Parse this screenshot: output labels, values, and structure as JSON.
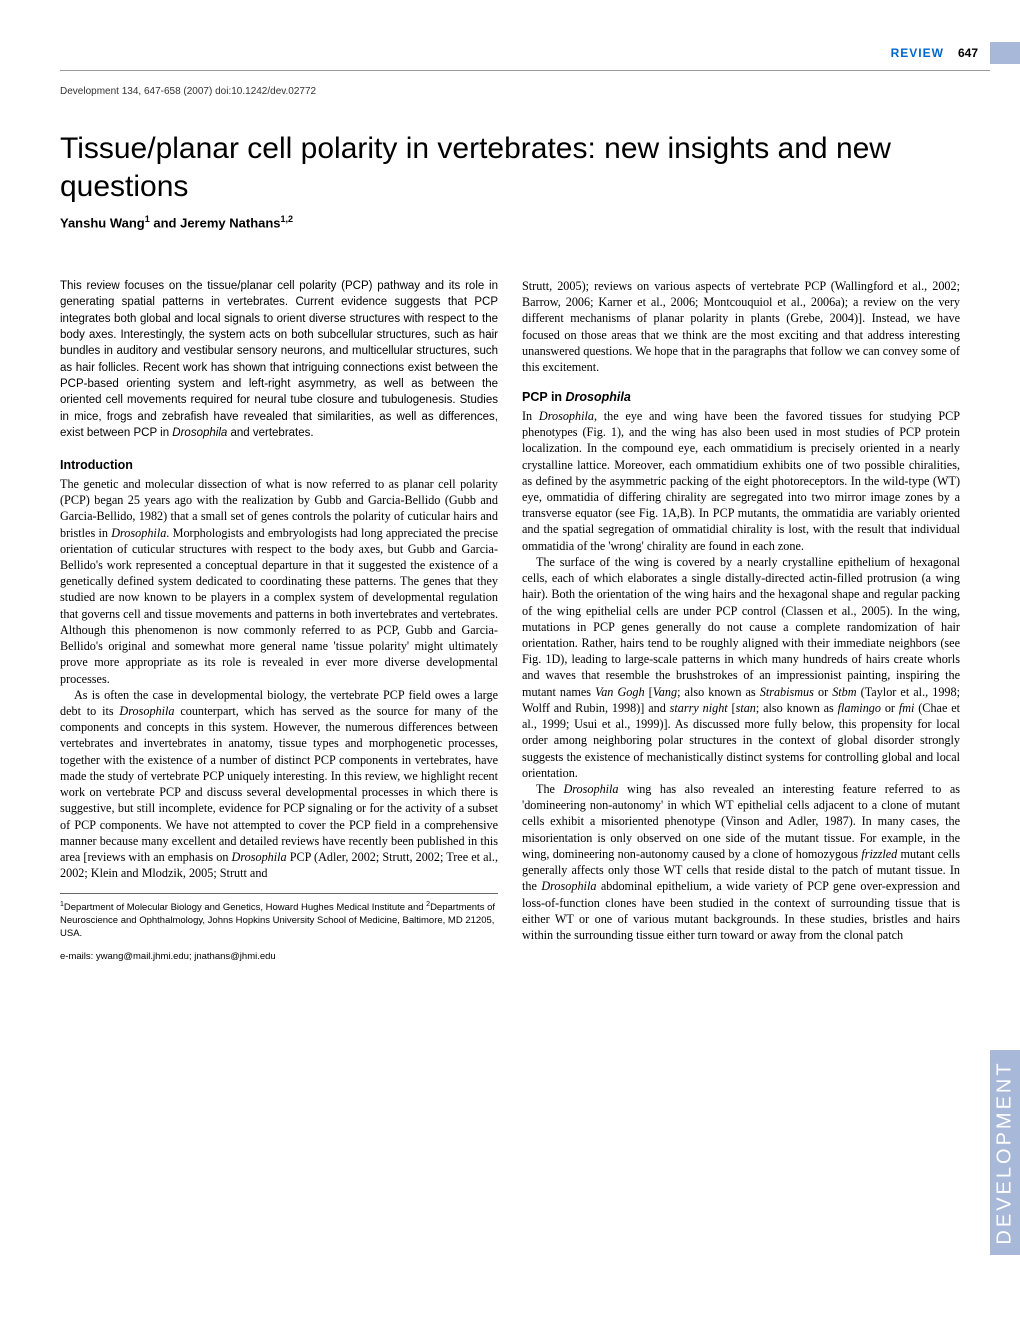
{
  "header": {
    "review_label": "REVIEW",
    "page_number": "647",
    "citation": "Development 134, 647-658 (2007) doi:10.1242/dev.02772"
  },
  "title": "Tissue/planar cell polarity in vertebrates: new insights and new questions",
  "authors": "Yanshu Wang¹ and Jeremy Nathans¹,²",
  "abstract": "This review focuses on the tissue/planar cell polarity (PCP) pathway and its role in generating spatial patterns in vertebrates. Current evidence suggests that PCP integrates both global and local signals to orient diverse structures with respect to the body axes. Interestingly, the system acts on both subcellular structures, such as hair bundles in auditory and vestibular sensory neurons, and multicellular structures, such as hair follicles. Recent work has shown that intriguing connections exist between the PCP-based orienting system and left-right asymmetry, as well as between the oriented cell movements required for neural tube closure and tubulogenesis. Studies in mice, frogs and zebrafish have revealed that similarities, as well as differences, exist between PCP in Drosophila and vertebrates.",
  "sections": {
    "intro_heading": "Introduction",
    "intro_p1": "The genetic and molecular dissection of what is now referred to as planar cell polarity (PCP) began 25 years ago with the realization by Gubb and Garcia-Bellido (Gubb and Garcia-Bellido, 1982) that a small set of genes controls the polarity of cuticular hairs and bristles in Drosophila. Morphologists and embryologists had long appreciated the precise orientation of cuticular structures with respect to the body axes, but Gubb and Garcia-Bellido's work represented a conceptual departure in that it suggested the existence of a genetically defined system dedicated to coordinating these patterns. The genes that they studied are now known to be players in a complex system of developmental regulation that governs cell and tissue movements and patterns in both invertebrates and vertebrates. Although this phenomenon is now commonly referred to as PCP, Gubb and Garcia-Bellido's original and somewhat more general name 'tissue polarity' might ultimately prove more appropriate as its role is revealed in ever more diverse developmental processes.",
    "intro_p2": "As is often the case in developmental biology, the vertebrate PCP field owes a large debt to its Drosophila counterpart, which has served as the source for many of the components and concepts in this system. However, the numerous differences between vertebrates and invertebrates in anatomy, tissue types and morphogenetic processes, together with the existence of a number of distinct PCP components in vertebrates, have made the study of vertebrate PCP uniquely interesting. In this review, we highlight recent work on vertebrate PCP and discuss several developmental processes in which there is suggestive, but still incomplete, evidence for PCP signaling or for the activity of a subset of PCP components. We have not attempted to cover the PCP field in a comprehensive manner because many excellent and detailed reviews have recently been published in this area [reviews with an emphasis on Drosophila PCP (Adler, 2002; Strutt, 2002; Tree et al., 2002; Klein and Mlodzik, 2005; Strutt and",
    "col2_p1": "Strutt, 2005); reviews on various aspects of vertebrate PCP (Wallingford et al., 2002; Barrow, 2006; Karner et al., 2006; Montcouquiol et al., 2006a); a review on the very different mechanisms of planar polarity in plants (Grebe, 2004)]. Instead, we have focused on those areas that we think are the most exciting and that address interesting unanswered questions. We hope that in the paragraphs that follow we can convey some of this excitement.",
    "pcp_heading": "PCP in Drosophila",
    "pcp_p1": "In Drosophila, the eye and wing have been the favored tissues for studying PCP phenotypes (Fig. 1), and the wing has also been used in most studies of PCP protein localization. In the compound eye, each ommatidium is precisely oriented in a nearly crystalline lattice. Moreover, each ommatidium exhibits one of two possible chiralities, as defined by the asymmetric packing of the eight photoreceptors. In the wild-type (WT) eye, ommatidia of differing chirality are segregated into two mirror image zones by a transverse equator (see Fig. 1A,B). In PCP mutants, the ommatidia are variably oriented and the spatial segregation of ommatidial chirality is lost, with the result that individual ommatidia of the 'wrong' chirality are found in each zone.",
    "pcp_p2": "The surface of the wing is covered by a nearly crystalline epithelium of hexagonal cells, each of which elaborates a single distally-directed actin-filled protrusion (a wing hair). Both the orientation of the wing hairs and the hexagonal shape and regular packing of the wing epithelial cells are under PCP control (Classen et al., 2005). In the wing, mutations in PCP genes generally do not cause a complete randomization of hair orientation. Rather, hairs tend to be roughly aligned with their immediate neighbors (see Fig. 1D), leading to large-scale patterns in which many hundreds of hairs create whorls and waves that resemble the brushstrokes of an impressionist painting, inspiring the mutant names Van Gogh [Vang; also known as Strabismus or Stbm (Taylor et al., 1998; Wolff and Rubin, 1998)] and starry night [stan; also known as flamingo or fmi (Chae et al., 1999; Usui et al., 1999)]. As discussed more fully below, this propensity for local order among neighboring polar structures in the context of global disorder strongly suggests the existence of mechanistically distinct systems for controlling global and local orientation.",
    "pcp_p3": "The Drosophila wing has also revealed an interesting feature referred to as 'domineering non-autonomy' in which WT epithelial cells adjacent to a clone of mutant cells exhibit a misoriented phenotype (Vinson and Adler, 1987). In many cases, the misorientation is only observed on one side of the mutant tissue. For example, in the wing, domineering non-autonomy caused by a clone of homozygous frizzled mutant cells generally affects only those WT cells that reside distal to the patch of mutant tissue. In the Drosophila abdominal epithelium, a wide variety of PCP gene over-expression and loss-of-function clones have been studied in the context of surrounding tissue that is either WT or one of various mutant backgrounds. In these studies, bristles and hairs within the surrounding tissue either turn toward or away from the clonal patch"
  },
  "footnote": {
    "affiliations": "¹Department of Molecular Biology and Genetics, Howard Hughes Medical Institute and ²Departments of Neuroscience and Ophthalmology, Johns Hopkins University School of Medicine, Baltimore, MD 21205, USA.",
    "emails": "e-mails: ywang@mail.jhmi.edu; jnathans@jhmi.edu"
  },
  "side_tab": "DEVELOPMENT",
  "colors": {
    "review_blue": "#0066cc",
    "tab_blue": "#a7b8d9",
    "text": "#000000",
    "line": "#999999"
  }
}
